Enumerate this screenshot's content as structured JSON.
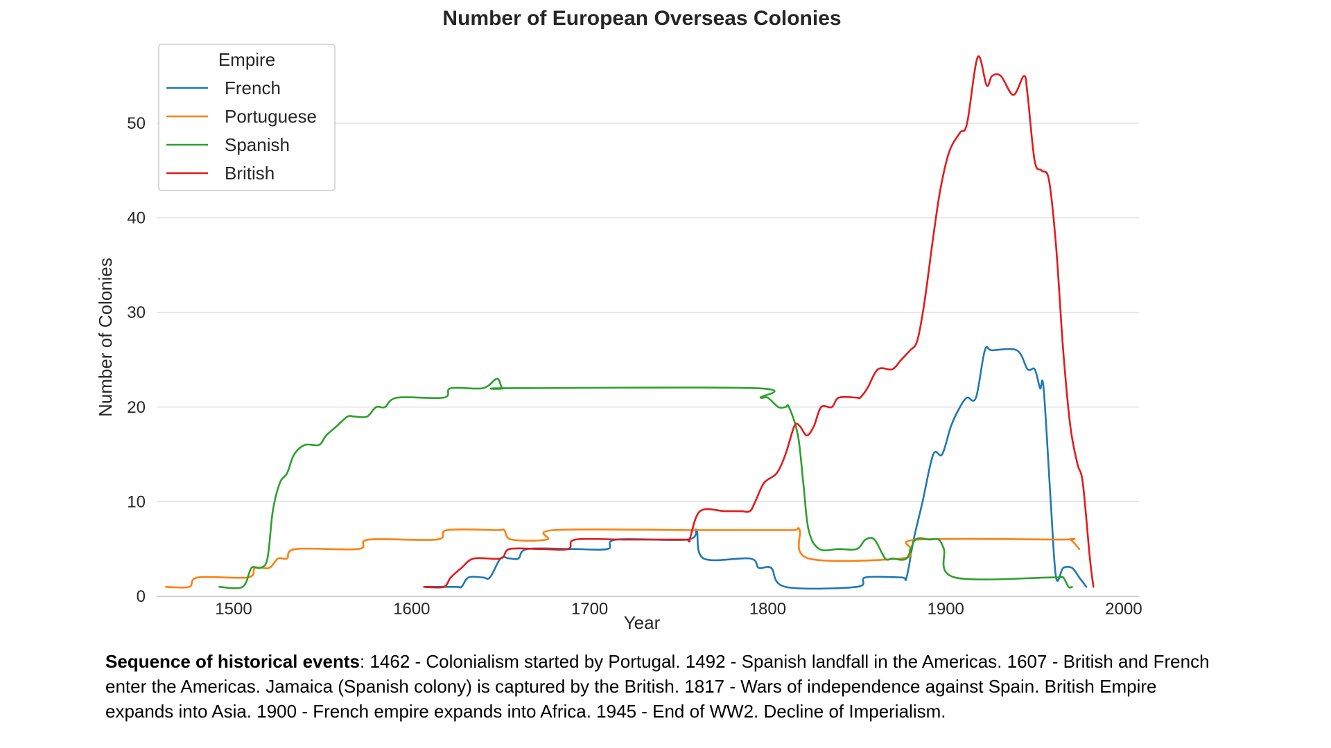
{
  "chart_data": {
    "type": "line",
    "title": "Number of European Overseas Colonies",
    "xlabel": "Year",
    "ylabel": "Number of Colonies",
    "xlim": [
      1445,
      1990
    ],
    "ylim": [
      0,
      58
    ],
    "xticks": [
      1500,
      1600,
      1700,
      1800,
      1900,
      2000
    ],
    "yticks": [
      0,
      10,
      20,
      30,
      40,
      50
    ],
    "grid": "horizontal",
    "legend": {
      "title": "Empire",
      "placement": "top-left"
    },
    "series": [
      {
        "name": "French",
        "color": "#1f77b4",
        "points": [
          [
            1607,
            1
          ],
          [
            1625,
            1
          ],
          [
            1628,
            1
          ],
          [
            1632,
            2
          ],
          [
            1640,
            2
          ],
          [
            1644,
            2
          ],
          [
            1650,
            4
          ],
          [
            1655,
            4
          ],
          [
            1660,
            4
          ],
          [
            1665,
            5
          ],
          [
            1690,
            5
          ],
          [
            1710,
            5
          ],
          [
            1715,
            6
          ],
          [
            1755,
            6
          ],
          [
            1760,
            7
          ],
          [
            1764,
            4
          ],
          [
            1790,
            4
          ],
          [
            1795,
            3
          ],
          [
            1802,
            3
          ],
          [
            1810,
            1
          ],
          [
            1850,
            1
          ],
          [
            1855,
            2
          ],
          [
            1875,
            2
          ],
          [
            1878,
            2
          ],
          [
            1882,
            6
          ],
          [
            1887,
            10
          ],
          [
            1893,
            15
          ],
          [
            1898,
            15
          ],
          [
            1903,
            18
          ],
          [
            1908,
            20
          ],
          [
            1912,
            21
          ],
          [
            1917,
            21
          ],
          [
            1922,
            26
          ],
          [
            1926,
            26
          ],
          [
            1940,
            26
          ],
          [
            1946,
            24
          ],
          [
            1950,
            24
          ],
          [
            1953,
            22
          ],
          [
            1955,
            22
          ],
          [
            1959,
            10
          ],
          [
            1962,
            2
          ],
          [
            1966,
            3
          ],
          [
            1971,
            3
          ],
          [
            1975,
            2
          ],
          [
            1979,
            1
          ]
        ]
      },
      {
        "name": "Portuguese",
        "color": "#ff7f0e",
        "points": [
          [
            1462,
            1
          ],
          [
            1475,
            1
          ],
          [
            1480,
            2
          ],
          [
            1508,
            2
          ],
          [
            1512,
            3
          ],
          [
            1520,
            3
          ],
          [
            1525,
            4
          ],
          [
            1530,
            4
          ],
          [
            1535,
            5
          ],
          [
            1570,
            5
          ],
          [
            1576,
            6
          ],
          [
            1614,
            6
          ],
          [
            1620,
            7
          ],
          [
            1648,
            7
          ],
          [
            1652,
            7
          ],
          [
            1656,
            6
          ],
          [
            1676,
            6
          ],
          [
            1680,
            7
          ],
          [
            1755,
            7
          ],
          [
            1773,
            7
          ],
          [
            1777,
            7
          ],
          [
            1782,
            7
          ],
          [
            1802,
            7
          ],
          [
            1815,
            7
          ],
          [
            1818,
            7
          ],
          [
            1823,
            4
          ],
          [
            1875,
            4
          ],
          [
            1880,
            5
          ],
          [
            1885,
            6
          ],
          [
            1965,
            6
          ],
          [
            1970,
            6
          ],
          [
            1975,
            5
          ]
        ]
      },
      {
        "name": "Spanish",
        "color": "#2ca02c",
        "points": [
          [
            1492,
            1
          ],
          [
            1505,
            1
          ],
          [
            1510,
            3
          ],
          [
            1515,
            3
          ],
          [
            1519,
            4
          ],
          [
            1522,
            9
          ],
          [
            1526,
            12
          ],
          [
            1530,
            13
          ],
          [
            1534,
            15
          ],
          [
            1540,
            16
          ],
          [
            1548,
            16
          ],
          [
            1552,
            17
          ],
          [
            1558,
            18
          ],
          [
            1564,
            19
          ],
          [
            1568,
            19
          ],
          [
            1575,
            19
          ],
          [
            1580,
            20
          ],
          [
            1585,
            20
          ],
          [
            1592,
            21
          ],
          [
            1618,
            21
          ],
          [
            1622,
            22
          ],
          [
            1640,
            22
          ],
          [
            1648,
            23
          ],
          [
            1651,
            22
          ],
          [
            1656,
            22
          ],
          [
            1793,
            22
          ],
          [
            1796,
            21
          ],
          [
            1800,
            21
          ],
          [
            1806,
            20
          ],
          [
            1810,
            20
          ],
          [
            1812,
            20
          ],
          [
            1817,
            17
          ],
          [
            1820,
            12
          ],
          [
            1823,
            7
          ],
          [
            1829,
            5
          ],
          [
            1840,
            5
          ],
          [
            1850,
            5
          ],
          [
            1855,
            6
          ],
          [
            1860,
            6
          ],
          [
            1866,
            4
          ],
          [
            1870,
            4
          ],
          [
            1878,
            4
          ],
          [
            1883,
            6
          ],
          [
            1891,
            6
          ],
          [
            1896,
            6
          ],
          [
            1899,
            5
          ],
          [
            1905,
            2
          ],
          [
            1960,
            2
          ],
          [
            1963,
            2
          ],
          [
            1966,
            2
          ],
          [
            1969,
            1
          ],
          [
            1971,
            1
          ]
        ]
      },
      {
        "name": "British",
        "color": "#e31a1c",
        "points": [
          [
            1607,
            1
          ],
          [
            1618,
            1
          ],
          [
            1622,
            2
          ],
          [
            1628,
            3
          ],
          [
            1635,
            4
          ],
          [
            1650,
            4
          ],
          [
            1655,
            5
          ],
          [
            1672,
            5
          ],
          [
            1688,
            5
          ],
          [
            1692,
            6
          ],
          [
            1720,
            6
          ],
          [
            1753,
            6
          ],
          [
            1756,
            6
          ],
          [
            1762,
            9
          ],
          [
            1776,
            9
          ],
          [
            1785,
            9
          ],
          [
            1790,
            9
          ],
          [
            1793,
            10
          ],
          [
            1798,
            12
          ],
          [
            1805,
            13
          ],
          [
            1810,
            15
          ],
          [
            1815,
            18
          ],
          [
            1818,
            18
          ],
          [
            1822,
            17
          ],
          [
            1826,
            18
          ],
          [
            1830,
            20
          ],
          [
            1836,
            20
          ],
          [
            1840,
            21
          ],
          [
            1850,
            21
          ],
          [
            1852,
            21
          ],
          [
            1856,
            22
          ],
          [
            1862,
            24
          ],
          [
            1870,
            24
          ],
          [
            1875,
            25
          ],
          [
            1880,
            26
          ],
          [
            1884,
            27
          ],
          [
            1888,
            31
          ],
          [
            1893,
            38
          ],
          [
            1897,
            43
          ],
          [
            1902,
            47
          ],
          [
            1908,
            49
          ],
          [
            1912,
            50
          ],
          [
            1918,
            57
          ],
          [
            1923,
            54
          ],
          [
            1926,
            55
          ],
          [
            1931,
            55
          ],
          [
            1938,
            53
          ],
          [
            1944,
            55
          ],
          [
            1946,
            53
          ],
          [
            1950,
            46
          ],
          [
            1954,
            45
          ],
          [
            1958,
            44
          ],
          [
            1962,
            37
          ],
          [
            1966,
            26
          ],
          [
            1970,
            18
          ],
          [
            1974,
            14
          ],
          [
            1977,
            12
          ],
          [
            1981,
            4
          ],
          [
            1983,
            1
          ]
        ]
      }
    ]
  },
  "caption": {
    "bold": "Sequence of historical events",
    "text": ": 1462 - Colonialism started by Portugal. 1492 - Spanish landfall in the Americas. 1607 - British and French enter the Americas.  Jamaica (Spanish colony) is captured by the British. 1817 - Wars of independence against Spain. British Empire expands into Asia. 1900 -  French empire expands into Africa. 1945 - End of WW2. Decline of Imperialism."
  }
}
